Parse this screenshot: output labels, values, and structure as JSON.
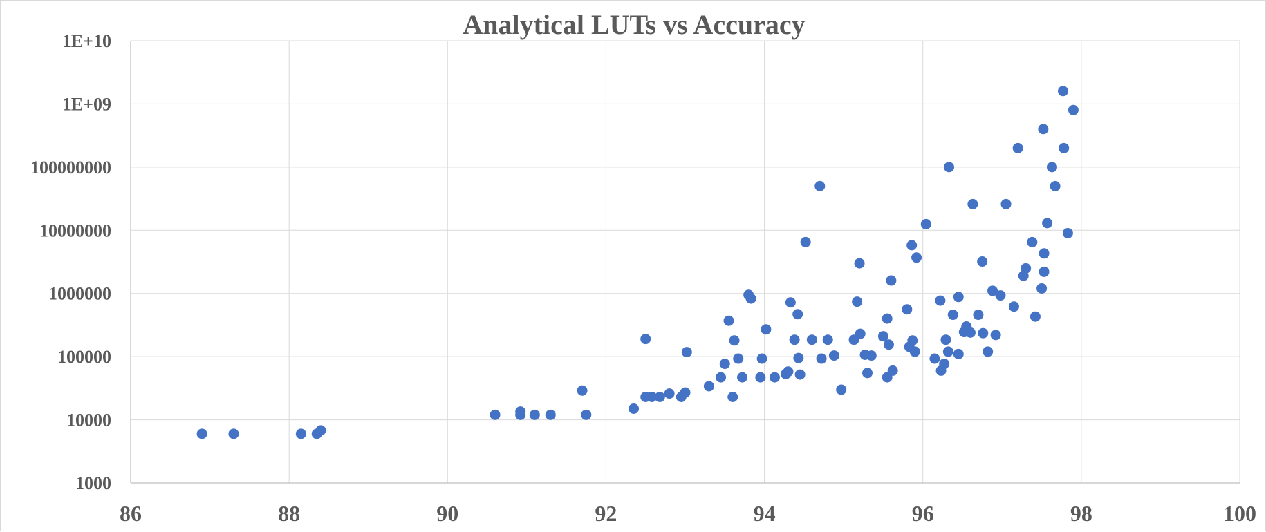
{
  "chart_data": {
    "type": "scatter",
    "title": "Analytical LUTs vs Accuracy",
    "xlabel": "",
    "ylabel": "",
    "xlim": [
      86,
      100
    ],
    "ylim": [
      1000,
      10000000000
    ],
    "y_scale": "log",
    "grid": true,
    "legend": "none",
    "x_ticks": [
      "86",
      "88",
      "90",
      "92",
      "94",
      "96",
      "98",
      "100"
    ],
    "y_ticks": [
      "1000",
      "10000",
      "100000",
      "1000000",
      "10000000",
      "100000000",
      "1E+09",
      "1E+10"
    ],
    "marker_color": "#4472c4",
    "series": [
      {
        "points": [
          [
            86.9,
            6000
          ],
          [
            87.3,
            6000
          ],
          [
            88.15,
            6000
          ],
          [
            88.35,
            6000
          ],
          [
            88.4,
            6800
          ],
          [
            90.6,
            12000
          ],
          [
            90.92,
            13500
          ],
          [
            90.92,
            12000
          ],
          [
            91.1,
            12000
          ],
          [
            91.3,
            12000
          ],
          [
            91.7,
            29000
          ],
          [
            91.75,
            12000
          ],
          [
            92.35,
            15000
          ],
          [
            92.5,
            190000
          ],
          [
            92.5,
            23000
          ],
          [
            92.58,
            23000
          ],
          [
            92.68,
            23000
          ],
          [
            92.8,
            26000
          ],
          [
            92.95,
            23000
          ],
          [
            93.0,
            27000
          ],
          [
            93.02,
            118000
          ],
          [
            93.3,
            34000
          ],
          [
            93.45,
            47000
          ],
          [
            93.5,
            77000
          ],
          [
            93.55,
            370000
          ],
          [
            93.6,
            23000
          ],
          [
            93.62,
            180000
          ],
          [
            93.67,
            93000
          ],
          [
            93.72,
            47000
          ],
          [
            93.8,
            950000
          ],
          [
            93.83,
            830000
          ],
          [
            93.95,
            47000
          ],
          [
            93.97,
            93000
          ],
          [
            94.02,
            270000
          ],
          [
            94.13,
            47000
          ],
          [
            94.27,
            53000
          ],
          [
            94.3,
            58000
          ],
          [
            94.33,
            720000
          ],
          [
            94.38,
            185000
          ],
          [
            94.42,
            470000
          ],
          [
            94.43,
            95000
          ],
          [
            94.45,
            52000
          ],
          [
            94.52,
            6500000
          ],
          [
            94.6,
            185000
          ],
          [
            94.7,
            50000000
          ],
          [
            94.72,
            93000
          ],
          [
            94.8,
            185000
          ],
          [
            94.88,
            104000
          ],
          [
            94.97,
            30000
          ],
          [
            95.13,
            185000
          ],
          [
            95.17,
            740000
          ],
          [
            95.2,
            3000000
          ],
          [
            95.21,
            230000
          ],
          [
            95.27,
            107000
          ],
          [
            95.3,
            55000
          ],
          [
            95.35,
            104000
          ],
          [
            95.5,
            210000
          ],
          [
            95.55,
            400000
          ],
          [
            95.55,
            47000
          ],
          [
            95.57,
            155000
          ],
          [
            95.6,
            1600000
          ],
          [
            95.62,
            60000
          ],
          [
            95.8,
            560000
          ],
          [
            95.83,
            143000
          ],
          [
            95.86,
            5800000
          ],
          [
            95.87,
            180000
          ],
          [
            95.9,
            120000
          ],
          [
            95.92,
            3700000
          ],
          [
            96.04,
            12500000
          ],
          [
            96.15,
            93000
          ],
          [
            96.22,
            770000
          ],
          [
            96.23,
            60000
          ],
          [
            96.27,
            77000
          ],
          [
            96.29,
            185000
          ],
          [
            96.32,
            120000
          ],
          [
            96.33,
            100000000
          ],
          [
            96.38,
            460000
          ],
          [
            96.45,
            880000
          ],
          [
            96.45,
            110000
          ],
          [
            96.52,
            245000
          ],
          [
            96.55,
            300000
          ],
          [
            96.6,
            240000
          ],
          [
            96.63,
            26000000
          ],
          [
            96.7,
            460000
          ],
          [
            96.75,
            3200000
          ],
          [
            96.76,
            235000
          ],
          [
            96.82,
            120000
          ],
          [
            96.88,
            1100000
          ],
          [
            96.92,
            220000
          ],
          [
            96.98,
            930000
          ],
          [
            97.05,
            26000000
          ],
          [
            97.15,
            620000
          ],
          [
            97.2,
            200000000
          ],
          [
            97.27,
            1900000
          ],
          [
            97.3,
            2500000
          ],
          [
            97.38,
            6500000
          ],
          [
            97.42,
            430000
          ],
          [
            97.5,
            1200000
          ],
          [
            97.52,
            400000000
          ],
          [
            97.53,
            4300000
          ],
          [
            97.53,
            2200000
          ],
          [
            97.57,
            13000000
          ],
          [
            97.63,
            100000000
          ],
          [
            97.67,
            50000000
          ],
          [
            97.77,
            1600000000
          ],
          [
            97.78,
            200000000
          ],
          [
            97.83,
            9000000
          ],
          [
            97.9,
            800000000
          ]
        ]
      }
    ]
  }
}
